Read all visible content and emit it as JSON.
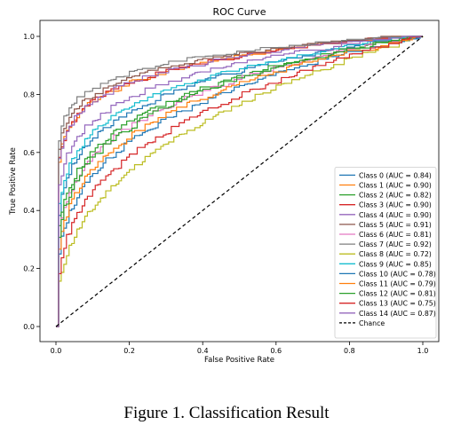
{
  "figure": {
    "caption": "Figure 1. Classification Result"
  },
  "chart_data": {
    "type": "line",
    "title": "ROC Curve",
    "xlabel": "False Positive Rate",
    "ylabel": "True Positive Rate",
    "xlim": [
      0.0,
      1.0
    ],
    "ylim": [
      0.0,
      1.0
    ],
    "xticks": [
      "0.0",
      "0.2",
      "0.4",
      "0.6",
      "0.8",
      "1.0"
    ],
    "yticks": [
      "0.0",
      "0.2",
      "0.4",
      "0.6",
      "0.8",
      "1.0"
    ],
    "grid": false,
    "legend_position": "lower-right",
    "series": [
      {
        "name": "Class 0 (AUC = 0.84)",
        "auc": 0.84,
        "color": "#1f77b4"
      },
      {
        "name": "Class 1 (AUC = 0.90)",
        "auc": 0.9,
        "color": "#ff7f0e"
      },
      {
        "name": "Class 2 (AUC = 0.82)",
        "auc": 0.82,
        "color": "#2ca02c"
      },
      {
        "name": "Class 3 (AUC = 0.90)",
        "auc": 0.9,
        "color": "#d62728"
      },
      {
        "name": "Class 4 (AUC = 0.90)",
        "auc": 0.9,
        "color": "#9467bd"
      },
      {
        "name": "Class 5 (AUC = 0.91)",
        "auc": 0.91,
        "color": "#8c564b"
      },
      {
        "name": "Class 6 (AUC = 0.81)",
        "auc": 0.81,
        "color": "#e377c2"
      },
      {
        "name": "Class 7 (AUC = 0.92)",
        "auc": 0.92,
        "color": "#7f7f7f"
      },
      {
        "name": "Class 8 (AUC = 0.72)",
        "auc": 0.72,
        "color": "#bcbd22"
      },
      {
        "name": "Class 9 (AUC = 0.85)",
        "auc": 0.85,
        "color": "#17becf"
      },
      {
        "name": "Class 10 (AUC = 0.78)",
        "auc": 0.78,
        "color": "#1f77b4"
      },
      {
        "name": "Class 11 (AUC = 0.79)",
        "auc": 0.79,
        "color": "#ff7f0e"
      },
      {
        "name": "Class 12 (AUC = 0.81)",
        "auc": 0.81,
        "color": "#2ca02c"
      },
      {
        "name": "Class 13 (AUC = 0.75)",
        "auc": 0.75,
        "color": "#d62728"
      },
      {
        "name": "Class 14 (AUC = 0.87)",
        "auc": 0.87,
        "color": "#9467bd"
      }
    ],
    "reference_line": {
      "name": "Chance",
      "color": "#000000",
      "style": "dashed",
      "points": [
        [
          0,
          0
        ],
        [
          1,
          1
        ]
      ]
    }
  }
}
